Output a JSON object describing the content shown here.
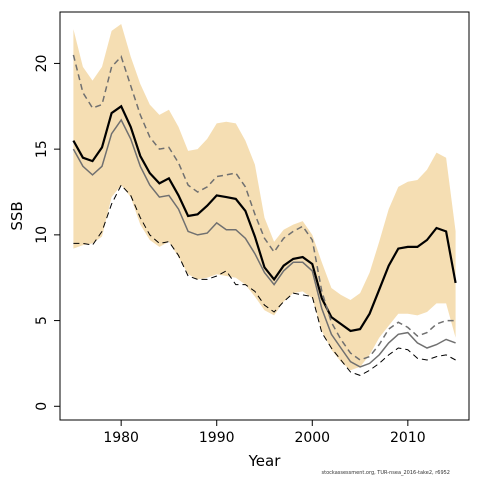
{
  "chart_data": {
    "type": "line",
    "xlabel": "Year",
    "ylabel": "SSB",
    "xlim": [
      1973.6,
      2016.4
    ],
    "ylim": [
      -0.8,
      23
    ],
    "x_ticks": [
      1980,
      1990,
      2000,
      2010
    ],
    "y_ticks": [
      0,
      5,
      10,
      15,
      20
    ],
    "band_color": "#F5DEB3",
    "x": [
      1975,
      1976,
      1977,
      1978,
      1979,
      1980,
      1981,
      1982,
      1983,
      1984,
      1985,
      1986,
      1987,
      1988,
      1989,
      1990,
      1991,
      1992,
      1993,
      1994,
      1995,
      1996,
      1997,
      1998,
      1999,
      2000,
      2001,
      2002,
      2003,
      2004,
      2005,
      2006,
      2007,
      2008,
      2009,
      2010,
      2011,
      2012,
      2013,
      2014,
      2015
    ],
    "confidence_band": {
      "upper": [
        22.0,
        19.8,
        19.0,
        19.8,
        21.9,
        22.3,
        20.4,
        18.8,
        17.6,
        17.0,
        17.3,
        16.3,
        14.9,
        15.0,
        15.6,
        16.5,
        16.6,
        16.5,
        15.5,
        14.1,
        11.0,
        9.6,
        10.3,
        10.6,
        10.8,
        10.0,
        8.4,
        6.9,
        6.5,
        6.2,
        6.6,
        7.8,
        9.6,
        11.5,
        12.8,
        13.1,
        13.2,
        13.8,
        14.8,
        14.5,
        10.2
      ],
      "lower": [
        9.2,
        9.4,
        9.5,
        9.9,
        12.2,
        12.9,
        12.2,
        10.6,
        9.7,
        9.3,
        9.6,
        8.7,
        7.7,
        7.4,
        7.5,
        7.7,
        7.6,
        7.5,
        7.1,
        6.4,
        5.6,
        5.3,
        6.1,
        6.6,
        6.7,
        6.3,
        4.4,
        3.3,
        2.6,
        2.1,
        2.3,
        3.0,
        4.0,
        4.7,
        5.4,
        5.4,
        5.3,
        5.5,
        6.0,
        6.0,
        4.0
      ]
    },
    "series": [
      {
        "values": [
          15.5,
          14.5,
          14.3,
          15.1,
          17.1,
          17.5,
          16.3,
          14.6,
          13.6,
          13.0,
          13.3,
          12.3,
          11.1,
          11.2,
          11.7,
          12.3,
          12.2,
          12.1,
          11.4,
          9.9,
          8.1,
          7.4,
          8.2,
          8.6,
          8.7,
          8.3,
          6.3,
          5.2,
          4.8,
          4.4,
          4.5,
          5.4,
          6.8,
          8.2,
          9.2,
          9.3,
          9.3,
          9.7,
          10.4,
          10.2,
          7.2
        ]
      },
      {
        "values": [
          15.0,
          14.0,
          13.5,
          14.0,
          15.9,
          16.7,
          15.6,
          14.0,
          12.9,
          12.2,
          12.3,
          11.5,
          10.2,
          10.0,
          10.1,
          10.7,
          10.3,
          10.3,
          9.8,
          8.9,
          7.8,
          7.1,
          7.9,
          8.4,
          8.4,
          7.9,
          5.7,
          4.2,
          3.4,
          2.6,
          2.3,
          2.5,
          3.0,
          3.7,
          4.2,
          4.3,
          3.7,
          3.4,
          3.6,
          3.9,
          3.7
        ]
      },
      {
        "values": [
          20.5,
          18.3,
          17.4,
          17.6,
          19.8,
          20.4,
          18.7,
          17.0,
          15.7,
          15.0,
          15.1,
          14.2,
          12.9,
          12.5,
          12.8,
          13.4,
          13.5,
          13.6,
          12.8,
          11.2,
          9.8,
          9.0,
          9.8,
          10.2,
          10.5,
          9.7,
          6.7,
          4.9,
          3.9,
          3.1,
          2.7,
          2.9,
          3.6,
          4.5,
          4.9,
          4.6,
          4.1,
          4.3,
          4.8,
          5.0,
          5.0
        ]
      },
      {
        "values": [
          9.5,
          9.5,
          9.4,
          10.2,
          11.8,
          12.9,
          12.3,
          11.0,
          10.0,
          9.5,
          9.6,
          8.8,
          7.6,
          7.4,
          7.4,
          7.6,
          7.9,
          7.1,
          7.1,
          6.7,
          5.9,
          5.5,
          6.1,
          6.6,
          6.5,
          6.4,
          4.3,
          3.4,
          2.7,
          2.0,
          1.8,
          2.1,
          2.5,
          3.0,
          3.4,
          3.3,
          2.8,
          2.7,
          2.9,
          3.0,
          2.7
        ]
      }
    ]
  },
  "footer": "stockassessment.org, TUR-nsea_2016-take2, r6952"
}
